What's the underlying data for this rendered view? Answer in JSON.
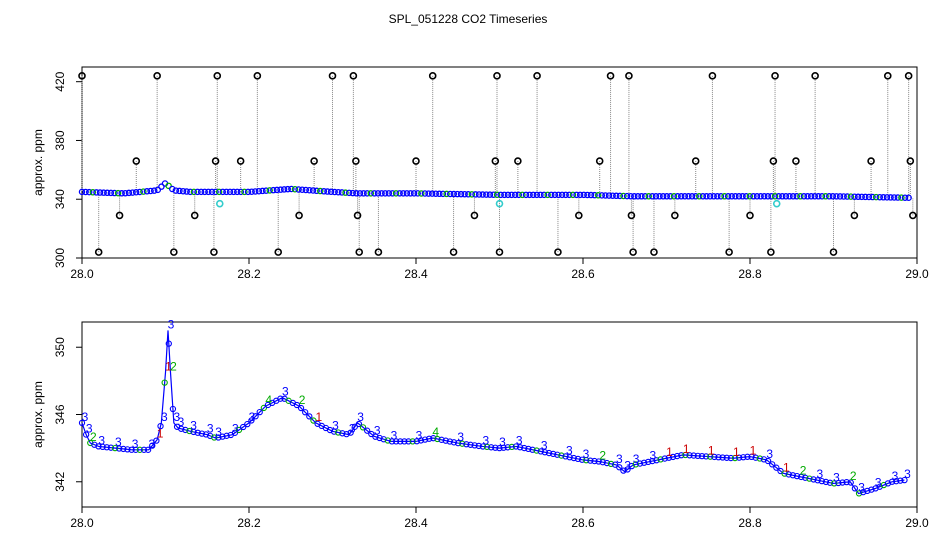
{
  "title": "SPL_051228  CO2 Timeseries",
  "colors": {
    "outlier": "#000000",
    "line": "#0000ff",
    "marker_blue": "#0000ff",
    "marker_green": "#00aa00",
    "marker_red": "#cc0000",
    "marker_cyan": "#33cccc",
    "drop_line": "#888888"
  },
  "chart_data": [
    {
      "type": "scatter",
      "ylabel": "approx. ppm",
      "xlim": [
        28.0,
        29.0
      ],
      "ylim": [
        300,
        430
      ],
      "x_ticks": [
        "28.0",
        "28.2",
        "28.4",
        "28.6",
        "28.8",
        "29.0"
      ],
      "y_ticks": [
        "300",
        "340",
        "380",
        "420"
      ],
      "grid": false,
      "series": [
        {
          "kind": "baseline",
          "x": [
            28.0,
            28.05,
            28.09,
            28.1,
            28.11,
            28.13,
            28.2,
            28.25,
            28.3,
            28.33,
            28.4,
            28.5,
            28.6,
            28.66,
            28.7,
            28.8,
            28.9,
            28.99
          ],
          "values": [
            345,
            344,
            346,
            351,
            346,
            345,
            345,
            347,
            345,
            344,
            344,
            343,
            343,
            342,
            342,
            342,
            342,
            341
          ]
        },
        {
          "kind": "outliers",
          "x": [
            28.0,
            28.02,
            28.045,
            28.065,
            28.09,
            28.11,
            28.135,
            28.158,
            28.16,
            28.162,
            28.19,
            28.21,
            28.235,
            28.26,
            28.278,
            28.3,
            28.325,
            28.328,
            28.33,
            28.332,
            28.355,
            28.4,
            28.42,
            28.445,
            28.47,
            28.495,
            28.497,
            28.5,
            28.522,
            28.545,
            28.57,
            28.595,
            28.62,
            28.633,
            28.655,
            28.658,
            28.66,
            28.685,
            28.71,
            28.735,
            28.755,
            28.775,
            28.8,
            28.825,
            28.828,
            28.83,
            28.855,
            28.878,
            28.9,
            28.925,
            28.945,
            28.965,
            28.99,
            28.992,
            28.995
          ],
          "values": [
            424,
            304,
            329,
            366,
            424,
            304,
            329,
            304,
            366,
            424,
            366,
            424,
            304,
            329,
            366,
            424,
            424,
            366,
            329,
            304,
            304,
            366,
            424,
            304,
            329,
            366,
            424,
            304,
            366,
            424,
            304,
            329,
            366,
            424,
            424,
            329,
            304,
            304,
            329,
            366,
            424,
            304,
            329,
            304,
            366,
            424,
            366,
            424,
            304,
            329,
            366,
            424,
            424,
            366,
            329
          ]
        },
        {
          "kind": "cyan",
          "x": [
            28.165,
            28.5,
            28.832
          ],
          "values": [
            337,
            337,
            337
          ]
        }
      ]
    },
    {
      "type": "line",
      "ylabel": "approx. ppm",
      "xlim": [
        28.0,
        29.0
      ],
      "ylim": [
        340.5,
        351.5
      ],
      "x_ticks": [
        "28.0",
        "28.2",
        "28.4",
        "28.6",
        "28.8",
        "29.0"
      ],
      "y_ticks": [
        "342",
        "346",
        "350"
      ],
      "grid": false,
      "x": [
        28.0,
        28.005,
        28.01,
        28.02,
        28.04,
        28.06,
        28.08,
        28.09,
        28.095,
        28.1,
        28.103,
        28.106,
        28.11,
        28.115,
        28.13,
        28.15,
        28.16,
        28.18,
        28.2,
        28.22,
        28.24,
        28.26,
        28.28,
        28.3,
        28.32,
        28.33,
        28.35,
        28.37,
        28.4,
        28.42,
        28.45,
        28.48,
        28.5,
        28.52,
        28.55,
        28.58,
        28.6,
        28.62,
        28.64,
        28.65,
        28.66,
        28.68,
        28.7,
        28.72,
        28.75,
        28.78,
        28.8,
        28.82,
        28.84,
        28.86,
        28.88,
        28.9,
        28.92,
        28.93,
        28.95,
        28.97,
        28.985
      ],
      "values": [
        345.5,
        344.8,
        344.3,
        344.1,
        344.0,
        343.9,
        343.9,
        344.5,
        345.5,
        348.5,
        351.0,
        348.5,
        345.5,
        345.2,
        345.0,
        344.8,
        344.6,
        344.8,
        345.5,
        346.5,
        347.0,
        346.5,
        345.5,
        345.0,
        344.8,
        345.5,
        344.7,
        344.4,
        344.4,
        344.6,
        344.3,
        344.1,
        344.0,
        344.1,
        343.8,
        343.5,
        343.3,
        343.2,
        343.0,
        342.6,
        343.0,
        343.2,
        343.4,
        343.6,
        343.5,
        343.4,
        343.5,
        343.3,
        342.5,
        342.3,
        342.1,
        341.9,
        342.0,
        341.3,
        341.6,
        342.0,
        342.1
      ],
      "labels": [
        "3",
        "3",
        "2",
        "3",
        "3",
        "3",
        "3",
        "1",
        "3",
        "1",
        "3",
        "2",
        "3",
        "3",
        "3",
        "3",
        "3",
        "3",
        "3",
        "4",
        "3",
        "2",
        "1",
        "3",
        "3",
        "3",
        "3",
        "3",
        "3",
        "4",
        "3",
        "3",
        "3",
        "3",
        "3",
        "3",
        "3",
        "2",
        "3",
        "3",
        "3",
        "3",
        "1",
        "1",
        "1",
        "1",
        "1",
        "3",
        "1",
        "2",
        "3",
        "3",
        "2",
        "3",
        "3",
        "3",
        "3"
      ]
    }
  ]
}
